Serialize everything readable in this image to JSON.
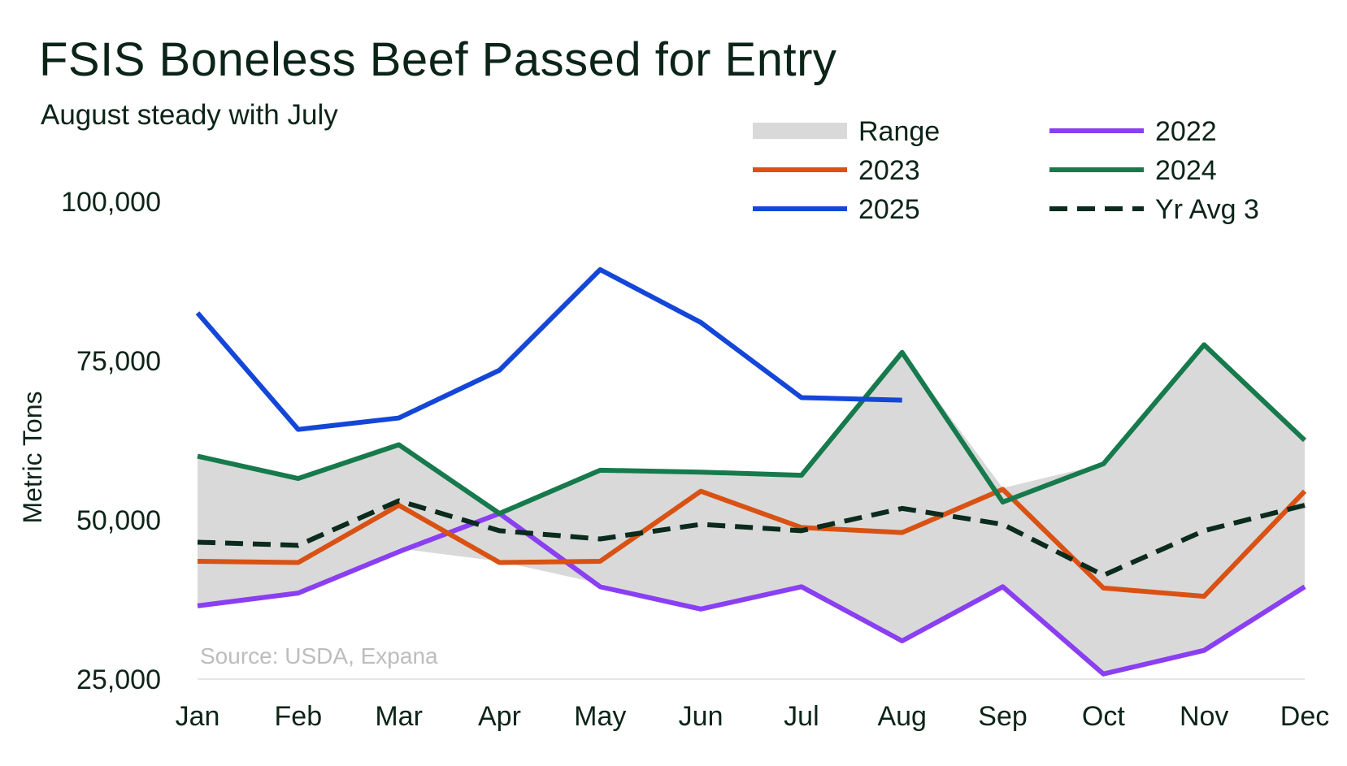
{
  "title": "FSIS Boneless Beef Passed for Entry",
  "subtitle": "August steady with July",
  "source": "Source: USDA, Expana",
  "chart_data": {
    "type": "line",
    "title": "FSIS Boneless Beef Passed for Entry",
    "subtitle": "August steady with July",
    "ylabel": "Metric Tons",
    "xlabel": "",
    "ylim": [
      25000,
      100000
    ],
    "yticks": [
      25000,
      50000,
      75000,
      100000
    ],
    "ytick_labels": [
      "25,000",
      "50,000",
      "75,000",
      "100,000"
    ],
    "categories": [
      "Jan",
      "Feb",
      "Mar",
      "Apr",
      "May",
      "Jun",
      "Jul",
      "Aug",
      "Sep",
      "Oct",
      "Nov",
      "Dec"
    ],
    "grid": false,
    "legend_position": "top-right",
    "range": {
      "name": "Range",
      "color": "#d9d9d9",
      "low": [
        36500,
        38500,
        45500,
        43500,
        40000,
        36000,
        39500,
        31000,
        39500,
        25800,
        29500,
        39500
      ],
      "high": [
        60000,
        56500,
        61800,
        51000,
        57800,
        57800,
        57300,
        76300,
        55000,
        58800,
        77500,
        62500
      ]
    },
    "series": [
      {
        "name": "2022",
        "color": "#8a3ff2",
        "dashed": false,
        "values": [
          36500,
          38500,
          45000,
          51000,
          39500,
          36000,
          39500,
          31000,
          39500,
          25800,
          29500,
          39500
        ]
      },
      {
        "name": "2023",
        "color": "#d95213",
        "dashed": false,
        "values": [
          43500,
          43300,
          52300,
          43300,
          43500,
          54500,
          48800,
          48000,
          54800,
          39300,
          38000,
          54500
        ]
      },
      {
        "name": "2024",
        "color": "#167a4c",
        "dashed": false,
        "values": [
          60000,
          56500,
          61800,
          51000,
          57800,
          57500,
          57000,
          76300,
          52800,
          58800,
          77500,
          62500
        ]
      },
      {
        "name": "2025",
        "color": "#1446d8",
        "dashed": false,
        "values": [
          82500,
          64200,
          66000,
          73500,
          89300,
          81000,
          69200,
          68800,
          null,
          null,
          null,
          null
        ]
      },
      {
        "name": "Yr Avg 3",
        "color": "#0b2b1d",
        "dashed": true,
        "values": [
          46500,
          46000,
          53000,
          48300,
          47000,
          49300,
          48300,
          51800,
          49300,
          41300,
          48300,
          52300
        ]
      }
    ],
    "legend": [
      {
        "label": "Range",
        "key": "range"
      },
      {
        "label": "2022",
        "key": "2022"
      },
      {
        "label": "2023",
        "key": "2023"
      },
      {
        "label": "2024",
        "key": "2024"
      },
      {
        "label": "2025",
        "key": "2025"
      },
      {
        "label": "Yr Avg 3",
        "key": "Yr Avg 3"
      }
    ]
  }
}
